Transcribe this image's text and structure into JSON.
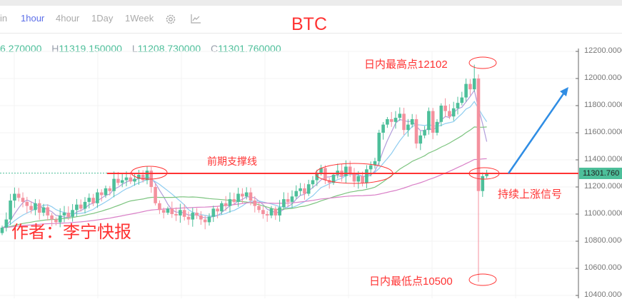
{
  "toolbar": {
    "intervals": [
      {
        "label": "in"
      },
      {
        "label": "1hour",
        "active": true
      },
      {
        "label": "4hour"
      },
      {
        "label": "1Day"
      },
      {
        "label": "1Week"
      }
    ],
    "settings_icon": "gear-icon",
    "indicator_icon": "line-chart-icon"
  },
  "title": "BTC",
  "ohlc": {
    "o_partial": "6.270000",
    "h_label": "H",
    "h": "11319.150000",
    "l_label": "L",
    "l": "11208.730000",
    "c_label": "C",
    "c": "11301.760000"
  },
  "annotations": {
    "high": "日内最高点12102",
    "support": "前期支撑线",
    "signal": "持续上涨信号",
    "low": "日内最低点10500",
    "author": "作者：李宁快报"
  },
  "colors": {
    "up": "#4dbf9a",
    "down": "#f4919e",
    "annotation": "#f33",
    "arrow": "#2f8de4",
    "ma5": "#b19ddb",
    "ma10": "#8fcdf0",
    "ma30": "#7cc47f",
    "ma60": "#d97fc7"
  },
  "chart_data": {
    "type": "candlestick",
    "title": "BTC",
    "interval": "1hour",
    "ylim": [
      10400,
      12200
    ],
    "yticks": [
      "12200.0000",
      "12000.0000",
      "11800.0000",
      "11600.0000",
      "11400.0000",
      "11200.0000",
      "11000.0000",
      "10800.0000",
      "10600.0000",
      "10400.0000"
    ],
    "last_price": "11301.760",
    "support_level": 11300,
    "intraday_high": 12102,
    "intraday_low": 10500,
    "moving_averages": [
      "MA5",
      "MA10",
      "MA30",
      "MA60"
    ],
    "close": [
      10900,
      10960,
      11100,
      11150,
      11120,
      11090,
      11060,
      11030,
      11080,
      11010,
      11050,
      10990,
      10960,
      10940,
      10990,
      11010,
      10980,
      11030,
      11070,
      11040,
      11090,
      11120,
      11080,
      11160,
      11140,
      11190,
      11170,
      11260,
      11230,
      11250,
      11270,
      11240,
      11260,
      11290,
      11250,
      11320,
      11200,
      11080,
      11030,
      11010,
      11040,
      11000,
      10990,
      11030,
      10980,
      10960,
      11010,
      10990,
      10960,
      10940,
      10980,
      11040,
      11020,
      11080,
      11060,
      11110,
      11090,
      11150,
      11130,
      11160,
      11100,
      11060,
      11030,
      11000,
      10990,
      11040,
      10990,
      11050,
      11110,
      11090,
      11130,
      11170,
      11190,
      11150,
      11220,
      11250,
      11300,
      11340,
      11250,
      11230,
      11290,
      11320,
      11280,
      11350,
      11300,
      11240,
      11280,
      11230,
      11330,
      11360,
      11390,
      11600,
      11660,
      11700,
      11680,
      11710,
      11740,
      11620,
      11660,
      11700,
      11520,
      11580,
      11620,
      11760,
      11600,
      11680,
      11800,
      11760,
      11720,
      11780,
      11820,
      11860,
      11960,
      11920,
      12000,
      11170,
      11280,
      11301.76
    ]
  }
}
